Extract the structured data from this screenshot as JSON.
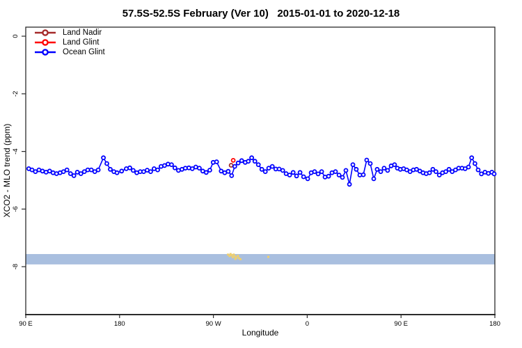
{
  "title": "57.5S-52.5S February (Ver 10)   2015-01-01 to 2020-12-18",
  "axes": {
    "x_label": "Longitude",
    "y_label": "XCO2 - MLO trend (ppm)"
  },
  "legend": {
    "items": [
      {
        "label": "Land Nadir",
        "color": "#A52A2A"
      },
      {
        "label": "Land Glint",
        "color": "#FF0000"
      },
      {
        "label": "Ocean Glint",
        "color": "#0000FF"
      }
    ]
  },
  "chart_data": {
    "type": "line",
    "title": "57.5S-52.5S February (Ver 10)   2015-01-01 to 2020-12-18",
    "xlabel": "Longitude",
    "ylabel": "XCO2 - MLO trend (ppm)",
    "x_axis": {
      "note": "axis spans 450 degrees eastward starting at 90E; t = degrees east of 90E",
      "ticks": [
        {
          "t": 0,
          "label": "90 E"
        },
        {
          "t": 90,
          "label": "180"
        },
        {
          "t": 180,
          "label": "90 W"
        },
        {
          "t": 270,
          "label": "0"
        },
        {
          "t": 360,
          "label": "90 E"
        },
        {
          "t": 450,
          "label": "180"
        }
      ],
      "range": [
        0,
        450
      ]
    },
    "y_axis": {
      "ticks": [
        {
          "v": 0,
          "label": "0"
        },
        {
          "v": -2,
          "label": "-2"
        },
        {
          "v": -4,
          "label": "-4"
        },
        {
          "v": -6,
          "label": "-6"
        },
        {
          "v": -8,
          "label": "-8"
        }
      ],
      "range": [
        0.3,
        -9.7
      ],
      "grid": false
    },
    "band": {
      "color": "#A9BFDF",
      "v_top": -7.56,
      "v_bottom": -7.92
    },
    "land_marks": {
      "color": "#EFCF6E",
      "points": [
        [
          194,
          -7.58
        ],
        [
          195.5,
          -7.63
        ],
        [
          196.5,
          -7.56
        ],
        [
          197.5,
          -7.6
        ],
        [
          198.5,
          -7.67
        ],
        [
          199.5,
          -7.58
        ],
        [
          200.5,
          -7.64
        ],
        [
          201,
          -7.73
        ],
        [
          202,
          -7.68
        ],
        [
          203.5,
          -7.62
        ],
        [
          204.5,
          -7.7
        ],
        [
          206,
          -7.74
        ],
        [
          232.7,
          -7.66
        ]
      ]
    },
    "series": [
      {
        "name": "Land Nadir",
        "color": "#A52A2A",
        "points": [
          [
            197.0,
            -4.48
          ]
        ]
      },
      {
        "name": "Land Glint",
        "color": "#FF0000",
        "points": [
          [
            199.0,
            -4.31
          ]
        ]
      },
      {
        "name": "Ocean Glint",
        "color": "#0000FF",
        "points": [
          [
            2.9,
            -4.6
          ],
          [
            6.0,
            -4.64
          ],
          [
            9.3,
            -4.7
          ],
          [
            12.7,
            -4.64
          ],
          [
            16.0,
            -4.68
          ],
          [
            19.5,
            -4.72
          ],
          [
            22.9,
            -4.68
          ],
          [
            26.2,
            -4.74
          ],
          [
            29.5,
            -4.77
          ],
          [
            32.9,
            -4.74
          ],
          [
            36.2,
            -4.7
          ],
          [
            39.5,
            -4.64
          ],
          [
            42.9,
            -4.77
          ],
          [
            46.2,
            -4.84
          ],
          [
            49.5,
            -4.72
          ],
          [
            52.9,
            -4.77
          ],
          [
            56.2,
            -4.7
          ],
          [
            59.5,
            -4.64
          ],
          [
            62.9,
            -4.64
          ],
          [
            66.2,
            -4.7
          ],
          [
            69.5,
            -4.64
          ],
          [
            74.5,
            -4.22
          ],
          [
            77.8,
            -4.42
          ],
          [
            81.1,
            -4.62
          ],
          [
            84.5,
            -4.7
          ],
          [
            87.5,
            -4.74
          ],
          [
            92.0,
            -4.68
          ],
          [
            96.5,
            -4.6
          ],
          [
            99.8,
            -4.57
          ],
          [
            103.1,
            -4.66
          ],
          [
            106.5,
            -4.74
          ],
          [
            109.8,
            -4.7
          ],
          [
            113.1,
            -4.7
          ],
          [
            116.5,
            -4.65
          ],
          [
            119.8,
            -4.7
          ],
          [
            123.1,
            -4.6
          ],
          [
            126.5,
            -4.64
          ],
          [
            129.8,
            -4.52
          ],
          [
            133.1,
            -4.49
          ],
          [
            136.5,
            -4.44
          ],
          [
            139.8,
            -4.46
          ],
          [
            143.1,
            -4.57
          ],
          [
            146.5,
            -4.66
          ],
          [
            149.8,
            -4.62
          ],
          [
            153.1,
            -4.58
          ],
          [
            156.5,
            -4.57
          ],
          [
            159.8,
            -4.6
          ],
          [
            163.1,
            -4.54
          ],
          [
            166.5,
            -4.58
          ],
          [
            169.8,
            -4.68
          ],
          [
            173.1,
            -4.73
          ],
          [
            176.5,
            -4.65
          ],
          [
            179.8,
            -4.38
          ],
          [
            183.1,
            -4.36
          ],
          [
            187.5,
            -4.68
          ],
          [
            190.9,
            -4.74
          ],
          [
            194.2,
            -4.69
          ],
          [
            197.5,
            -4.84
          ],
          [
            200.5,
            -4.52
          ],
          [
            203.8,
            -4.4
          ],
          [
            207.1,
            -4.32
          ],
          [
            210.5,
            -4.38
          ],
          [
            213.5,
            -4.34
          ],
          [
            216.7,
            -4.22
          ],
          [
            219.8,
            -4.34
          ],
          [
            223.1,
            -4.46
          ],
          [
            226.5,
            -4.62
          ],
          [
            229.8,
            -4.7
          ],
          [
            233.1,
            -4.58
          ],
          [
            236.5,
            -4.52
          ],
          [
            239.8,
            -4.61
          ],
          [
            243.1,
            -4.61
          ],
          [
            246.5,
            -4.66
          ],
          [
            249.8,
            -4.77
          ],
          [
            253.1,
            -4.82
          ],
          [
            256.5,
            -4.73
          ],
          [
            259.8,
            -4.85
          ],
          [
            263.1,
            -4.73
          ],
          [
            266.5,
            -4.88
          ],
          [
            270.5,
            -4.95
          ],
          [
            273.8,
            -4.74
          ],
          [
            277.1,
            -4.7
          ],
          [
            280.5,
            -4.78
          ],
          [
            283.8,
            -4.7
          ],
          [
            287.1,
            -4.89
          ],
          [
            290.5,
            -4.86
          ],
          [
            293.8,
            -4.74
          ],
          [
            297.1,
            -4.7
          ],
          [
            300.5,
            -4.82
          ],
          [
            303.8,
            -4.9
          ],
          [
            307.1,
            -4.66
          ],
          [
            310.5,
            -5.14
          ],
          [
            313.8,
            -4.46
          ],
          [
            317.1,
            -4.62
          ],
          [
            320.5,
            -4.82
          ],
          [
            323.8,
            -4.81
          ],
          [
            327.1,
            -4.3
          ],
          [
            330.5,
            -4.42
          ],
          [
            333.8,
            -4.95
          ],
          [
            337.1,
            -4.62
          ],
          [
            340.5,
            -4.7
          ],
          [
            343.8,
            -4.58
          ],
          [
            347.1,
            -4.66
          ],
          [
            350.5,
            -4.5
          ],
          [
            353.8,
            -4.46
          ],
          [
            356.5,
            -4.58
          ],
          [
            359.3,
            -4.62
          ],
          [
            362.5,
            -4.6
          ],
          [
            365.5,
            -4.64
          ],
          [
            368.7,
            -4.7
          ],
          [
            371.8,
            -4.64
          ],
          [
            374.9,
            -4.62
          ],
          [
            378.0,
            -4.68
          ],
          [
            381.1,
            -4.74
          ],
          [
            384.2,
            -4.77
          ],
          [
            387.3,
            -4.74
          ],
          [
            390.5,
            -4.62
          ],
          [
            393.5,
            -4.7
          ],
          [
            396.7,
            -4.82
          ],
          [
            399.8,
            -4.74
          ],
          [
            402.9,
            -4.7
          ],
          [
            406.0,
            -4.62
          ],
          [
            409.1,
            -4.7
          ],
          [
            412.2,
            -4.64
          ],
          [
            415.3,
            -4.58
          ],
          [
            418.5,
            -4.58
          ],
          [
            421.5,
            -4.6
          ],
          [
            424.7,
            -4.54
          ],
          [
            427.8,
            -4.22
          ],
          [
            430.9,
            -4.42
          ],
          [
            434.0,
            -4.64
          ],
          [
            437.1,
            -4.78
          ],
          [
            440.5,
            -4.72
          ],
          [
            443.8,
            -4.76
          ],
          [
            447.1,
            -4.72
          ],
          [
            449.3,
            -4.78
          ]
        ]
      }
    ]
  }
}
